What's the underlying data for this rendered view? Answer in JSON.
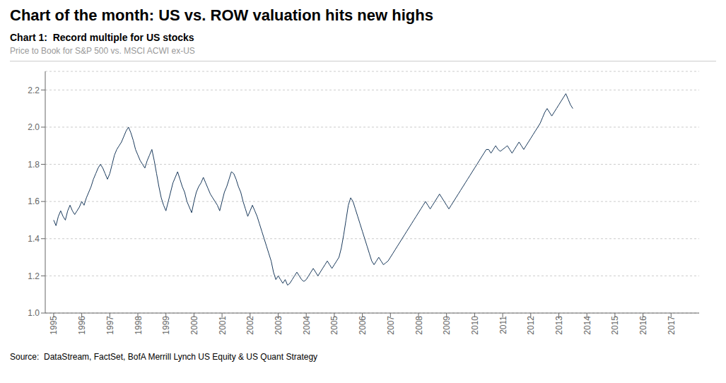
{
  "chart_data": {
    "type": "line",
    "title": "Chart of the month: US vs. ROW valuation hits new highs",
    "subtitle": "Chart 1:  Record multiple for US stocks",
    "caption": "Price to Book for S&P 500 vs. MSCI ACWI ex-US",
    "source": "Source:  DataStream, FactSet, BofA Merrill Lynch US Equity & US Quant Strategy",
    "color": "#1a3a5c",
    "grid": true,
    "xlim": [
      1994.7,
      2018.0
    ],
    "xticks": [
      1995,
      1996,
      1997,
      1998,
      1999,
      2000,
      2001,
      2002,
      2003,
      2004,
      2005,
      2006,
      2007,
      2008,
      2009,
      2010,
      2011,
      2012,
      2013,
      2014,
      2015,
      2016,
      2017
    ],
    "ylim": [
      1.0,
      2.3
    ],
    "yticks": [
      {
        "value": 1.0,
        "label": "1.0"
      },
      1.2,
      1.4,
      1.6,
      1.8,
      {
        "value": 2.0,
        "label": "2.0"
      },
      2.2
    ],
    "x": [
      1995,
      1995.083333,
      1995.166667,
      1995.25,
      1995.333333,
      1995.416667,
      1995.5,
      1995.583333,
      1995.666667,
      1995.75,
      1995.833333,
      1995.916667,
      1996,
      1996.083333,
      1996.166667,
      1996.25,
      1996.333333,
      1996.416667,
      1996.5,
      1996.583333,
      1996.666667,
      1996.75,
      1996.833333,
      1996.916667,
      1997,
      1997.083333,
      1997.166667,
      1997.25,
      1997.333333,
      1997.416667,
      1997.5,
      1997.583333,
      1997.666667,
      1997.75,
      1997.833333,
      1997.916667,
      1998,
      1998.083333,
      1998.166667,
      1998.25,
      1998.333333,
      1998.416667,
      1998.5,
      1998.583333,
      1998.666667,
      1998.75,
      1998.833333,
      1998.916667,
      1999,
      1999.083333,
      1999.166667,
      1999.25,
      1999.333333,
      1999.416667,
      1999.5,
      1999.583333,
      1999.666667,
      1999.75,
      1999.833333,
      1999.916667,
      2000,
      2000.083333,
      2000.166667,
      2000.25,
      2000.333333,
      2000.416667,
      2000.5,
      2000.583333,
      2000.666667,
      2000.75,
      2000.833333,
      2000.916667,
      2001,
      2001.083333,
      2001.166667,
      2001.25,
      2001.333333,
      2001.416667,
      2001.5,
      2001.583333,
      2001.666667,
      2001.75,
      2001.833333,
      2001.916667,
      2002,
      2002.083333,
      2002.166667,
      2002.25,
      2002.333333,
      2002.416667,
      2002.5,
      2002.583333,
      2002.666667,
      2002.75,
      2002.833333,
      2002.916667,
      2003,
      2003.083333,
      2003.166667,
      2003.25,
      2003.333333,
      2003.416667,
      2003.5,
      2003.583333,
      2003.666667,
      2003.75,
      2003.833333,
      2003.916667,
      2004,
      2004.083333,
      2004.166667,
      2004.25,
      2004.333333,
      2004.416667,
      2004.5,
      2004.583333,
      2004.666667,
      2004.75,
      2004.833333,
      2004.916667,
      2005,
      2005.083333,
      2005.166667,
      2005.25,
      2005.333333,
      2005.416667,
      2005.5,
      2005.583333,
      2005.666667,
      2005.75,
      2005.833333,
      2005.916667,
      2006,
      2006.083333,
      2006.166667,
      2006.25,
      2006.333333,
      2006.416667,
      2006.5,
      2006.583333,
      2006.666667,
      2006.75,
      2006.833333,
      2006.916667,
      2007,
      2007.083333,
      2007.166667,
      2007.25,
      2007.333333,
      2007.416667,
      2007.5,
      2007.583333,
      2007.666667,
      2007.75,
      2007.833333,
      2007.916667,
      2008,
      2008.083333,
      2008.166667,
      2008.25,
      2008.333333,
      2008.416667,
      2008.5,
      2008.583333,
      2008.666667,
      2008.75,
      2008.833333,
      2008.916667,
      2009,
      2009.083333,
      2009.166667,
      2009.25,
      2009.333333,
      2009.416667,
      2009.5,
      2009.583333,
      2009.666667,
      2009.75,
      2009.833333,
      2009.916667,
      2010,
      2010.083333,
      2010.166667,
      2010.25,
      2010.333333,
      2010.416667,
      2010.5,
      2010.583333,
      2010.666667,
      2010.75,
      2010.833333,
      2010.916667,
      2011,
      2011.083333,
      2011.166667,
      2011.25,
      2011.333333,
      2011.416667,
      2011.5,
      2011.583333,
      2011.666667,
      2011.75,
      2011.833333,
      2011.916667,
      2012,
      2012.083333,
      2012.166667,
      2012.25,
      2012.333333,
      2012.416667,
      2012.5,
      2012.583333,
      2012.666667,
      2012.75,
      2012.833333,
      2012.916667,
      2013,
      2013.083333,
      2013.166667,
      2013.25,
      2013.333333,
      2013.416667,
      2013.5
    ],
    "values": [
      1.5,
      1.47,
      1.52,
      1.55,
      1.52,
      1.5,
      1.55,
      1.58,
      1.55,
      1.53,
      1.55,
      1.57,
      1.6,
      1.58,
      1.62,
      1.65,
      1.68,
      1.72,
      1.75,
      1.78,
      1.8,
      1.78,
      1.75,
      1.72,
      1.75,
      1.8,
      1.85,
      1.88,
      1.9,
      1.92,
      1.95,
      1.98,
      2.0,
      1.97,
      1.93,
      1.88,
      1.85,
      1.82,
      1.8,
      1.78,
      1.82,
      1.85,
      1.88,
      1.82,
      1.75,
      1.68,
      1.62,
      1.58,
      1.55,
      1.6,
      1.65,
      1.7,
      1.73,
      1.76,
      1.72,
      1.68,
      1.65,
      1.6,
      1.57,
      1.54,
      1.6,
      1.65,
      1.68,
      1.7,
      1.73,
      1.7,
      1.67,
      1.64,
      1.62,
      1.6,
      1.58,
      1.55,
      1.6,
      1.65,
      1.68,
      1.72,
      1.76,
      1.75,
      1.72,
      1.68,
      1.65,
      1.6,
      1.56,
      1.52,
      1.55,
      1.58,
      1.55,
      1.52,
      1.48,
      1.44,
      1.4,
      1.36,
      1.32,
      1.28,
      1.22,
      1.18,
      1.2,
      1.18,
      1.16,
      1.18,
      1.15,
      1.16,
      1.18,
      1.2,
      1.22,
      1.2,
      1.18,
      1.17,
      1.18,
      1.2,
      1.22,
      1.24,
      1.22,
      1.2,
      1.22,
      1.24,
      1.26,
      1.28,
      1.26,
      1.24,
      1.26,
      1.28,
      1.3,
      1.35,
      1.42,
      1.5,
      1.58,
      1.62,
      1.6,
      1.56,
      1.52,
      1.48,
      1.44,
      1.4,
      1.36,
      1.32,
      1.28,
      1.26,
      1.28,
      1.3,
      1.28,
      1.26,
      1.27,
      1.28,
      1.3,
      1.32,
      1.34,
      1.36,
      1.38,
      1.4,
      1.42,
      1.44,
      1.46,
      1.48,
      1.5,
      1.52,
      1.54,
      1.56,
      1.58,
      1.6,
      1.58,
      1.56,
      1.58,
      1.6,
      1.62,
      1.64,
      1.62,
      1.6,
      1.58,
      1.56,
      1.58,
      1.6,
      1.62,
      1.64,
      1.66,
      1.68,
      1.7,
      1.72,
      1.74,
      1.76,
      1.78,
      1.8,
      1.82,
      1.84,
      1.86,
      1.88,
      1.88,
      1.86,
      1.88,
      1.9,
      1.88,
      1.87,
      1.88,
      1.89,
      1.9,
      1.88,
      1.86,
      1.88,
      1.9,
      1.92,
      1.9,
      1.88,
      1.9,
      1.92,
      1.94,
      1.96,
      1.98,
      2.0,
      2.02,
      2.05,
      2.08,
      2.1,
      2.08,
      2.06,
      2.08,
      2.1,
      2.12,
      2.14,
      2.16,
      2.18,
      2.15,
      2.12,
      2.1
    ]
  }
}
